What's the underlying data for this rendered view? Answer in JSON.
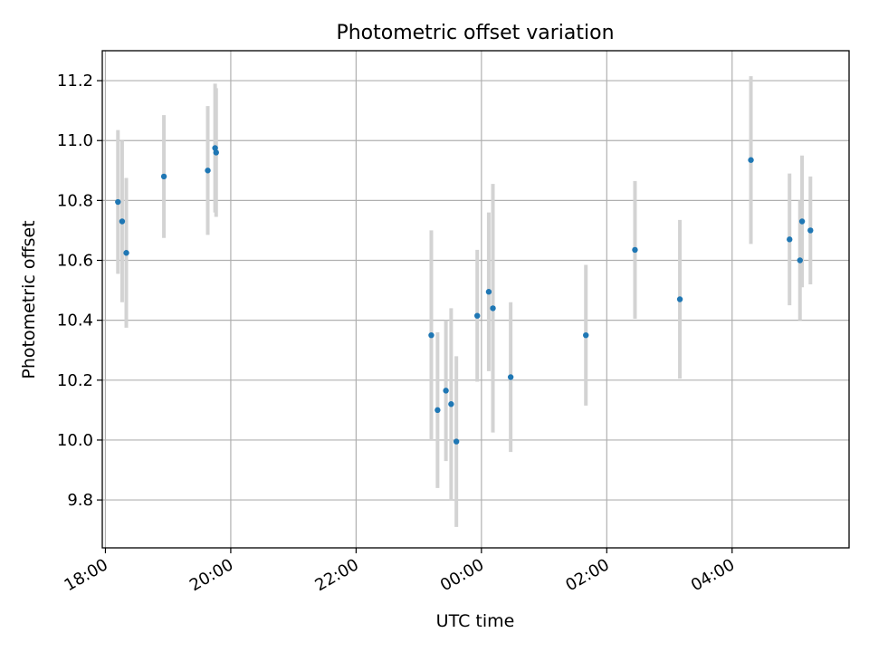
{
  "chart_data": {
    "type": "scatter",
    "title": "Photometric offset variation",
    "xlabel": "UTC time",
    "ylabel": "Photometric offset",
    "x_unit": "time (HH:MM)",
    "xlim": [
      "17:57",
      "05:52"
    ],
    "ylim": [
      9.64,
      11.3
    ],
    "x_ticks": [
      "18:00",
      "20:00",
      "22:00",
      "00:00",
      "02:00",
      "04:00"
    ],
    "y_ticks": [
      "9.8",
      "10.0",
      "10.2",
      "10.4",
      "10.6",
      "10.8",
      "11.0",
      "11.2"
    ],
    "grid": true,
    "legend": "none",
    "marker_color": "#1f77b4",
    "errorbar_color": "#d3d3d3",
    "points": [
      {
        "x": "18:12",
        "y": 10.795,
        "yerr": 0.24
      },
      {
        "x": "18:16",
        "y": 10.73,
        "yerr": 0.27
      },
      {
        "x": "18:20",
        "y": 10.625,
        "yerr": 0.25
      },
      {
        "x": "18:56",
        "y": 10.88,
        "yerr": 0.205
      },
      {
        "x": "19:38",
        "y": 10.9,
        "yerr": 0.215
      },
      {
        "x": "19:45",
        "y": 10.975,
        "yerr": 0.215
      },
      {
        "x": "19:46",
        "y": 10.96,
        "yerr": 0.215
      },
      {
        "x": "23:12",
        "y": 10.35,
        "yerr": 0.35
      },
      {
        "x": "23:18",
        "y": 10.1,
        "yerr": 0.26
      },
      {
        "x": "23:26",
        "y": 10.165,
        "yerr": 0.235
      },
      {
        "x": "23:31",
        "y": 10.12,
        "yerr": 0.32
      },
      {
        "x": "23:36",
        "y": 9.995,
        "yerr": 0.285
      },
      {
        "x": "23:56",
        "y": 10.415,
        "yerr": 0.22
      },
      {
        "x": "00:07",
        "y": 10.495,
        "yerr": 0.265
      },
      {
        "x": "00:11",
        "y": 10.44,
        "yerr": 0.415
      },
      {
        "x": "00:28",
        "y": 10.21,
        "yerr": 0.25
      },
      {
        "x": "01:40",
        "y": 10.35,
        "yerr": 0.235
      },
      {
        "x": "02:27",
        "y": 10.635,
        "yerr": 0.23
      },
      {
        "x": "03:10",
        "y": 10.47,
        "yerr": 0.265
      },
      {
        "x": "04:18",
        "y": 10.935,
        "yerr": 0.28
      },
      {
        "x": "04:55",
        "y": 10.67,
        "yerr": 0.22
      },
      {
        "x": "05:05",
        "y": 10.6,
        "yerr": 0.2
      },
      {
        "x": "05:07",
        "y": 10.73,
        "yerr": 0.22
      },
      {
        "x": "05:15",
        "y": 10.7,
        "yerr": 0.18
      }
    ]
  }
}
